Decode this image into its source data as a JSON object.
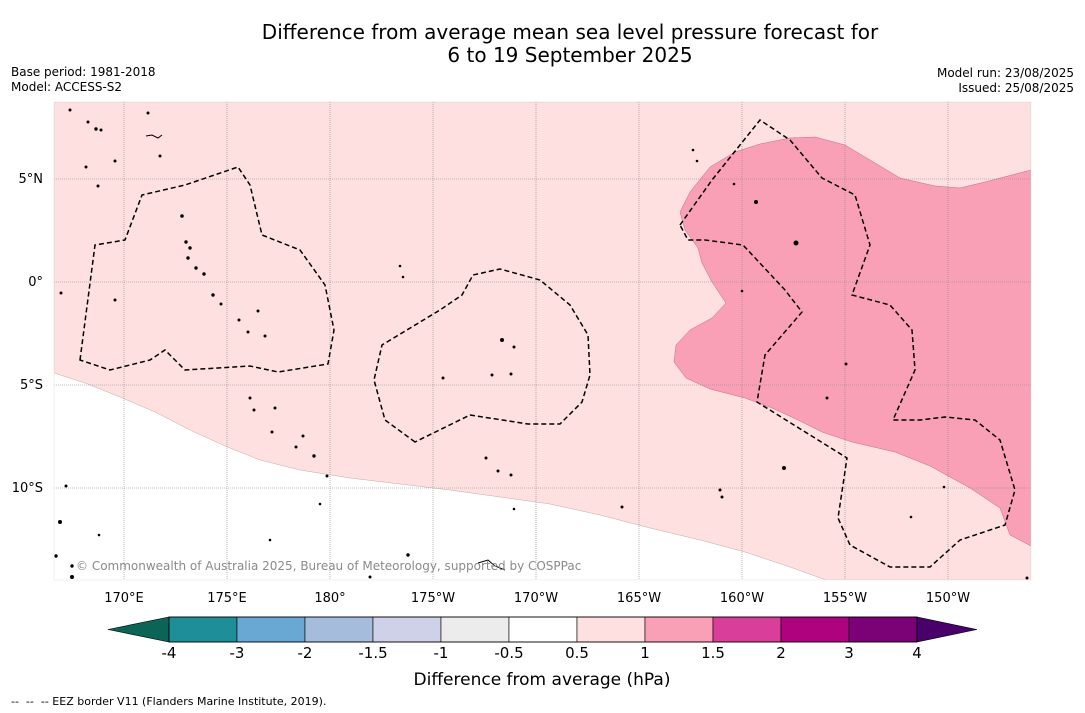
{
  "title_line1": "Difference from average mean sea level pressure forecast for",
  "title_line2": "6 to 19 September 2025",
  "meta": {
    "base_period": "Base period: 1981-2018",
    "model": "Model: ACCESS-S2",
    "model_run": "Model run: 23/08/2025",
    "issued": "Issued: 25/08/2025"
  },
  "map": {
    "lat_labels": [
      "5°N",
      "0°",
      "5°S",
      "10°S"
    ],
    "lat_values": [
      5,
      0,
      -5,
      -10
    ],
    "lon_labels": [
      "170°E",
      "175°E",
      "180°",
      "175°W",
      "170°W",
      "165°W",
      "160°W",
      "155°W",
      "150°W"
    ],
    "lon_values": [
      170,
      175,
      180,
      185,
      190,
      195,
      200,
      205,
      210
    ],
    "lon_range": [
      166.6,
      214.0
    ],
    "lat_range": [
      -14.5,
      8.6
    ],
    "copyright": "© Commonwealth of Australia 2025, Bureau of Meteorology, supported by COSPPac",
    "colors": {
      "zone_0_5_to_1": "#fde0df",
      "zone_1_to_1_5": "#f9a0b7",
      "land": "#000000"
    }
  },
  "colorbar": {
    "title": "Difference from average (hPa)",
    "labels": [
      "-4",
      "-3",
      "-2",
      "-1.5",
      "-1",
      "-0.5",
      "0.5",
      "1",
      "1.5",
      "2",
      "3",
      "4"
    ],
    "colors": [
      "#1e8f98",
      "#68a8d2",
      "#a6bcdc",
      "#cfd1e8",
      "#ececec",
      "#ffffff",
      "#fde0df",
      "#f9a0b7",
      "#d93f9a",
      "#ae027e",
      "#7b0177"
    ],
    "extend_min_color": "#0b6456",
    "extend_max_color": "#49006a"
  },
  "footnote": "--  --  -- EEZ border V11 (Flanders Marine Institute, 2019)."
}
